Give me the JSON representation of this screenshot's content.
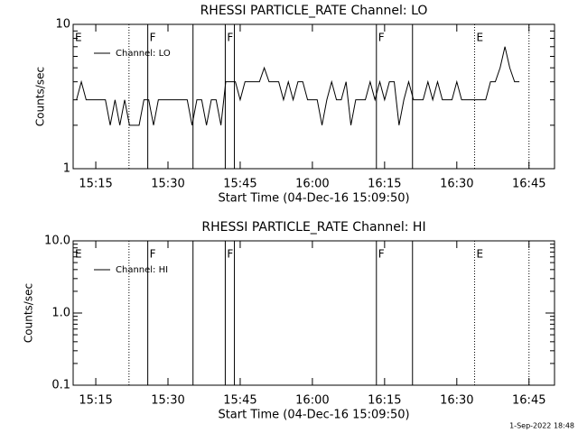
{
  "chart_data": [
    {
      "type": "line",
      "title": "RHESSI PARTICLE_RATE Channel: LO",
      "xlabel": "Start Time (04-Dec-16 15:09:50)",
      "ylabel": "Counts/sec",
      "log_scale": true,
      "legend": "upper left",
      "xlim": [
        10.3,
        110.3
      ],
      "xticks": [
        {
          "value": 15,
          "label": "15:15"
        },
        {
          "value": 30,
          "label": "15:30"
        },
        {
          "value": 45,
          "label": "15:45"
        },
        {
          "value": 60,
          "label": "16:00"
        },
        {
          "value": 75,
          "label": "16:15"
        },
        {
          "value": 90,
          "label": "16:30"
        },
        {
          "value": 105,
          "label": "16:45"
        }
      ],
      "ylim": [
        1,
        10
      ],
      "yticks": [
        1,
        10
      ],
      "series": [
        {
          "name": "Channel: LO",
          "color": "#000000",
          "x": [
            11,
            12,
            13,
            14,
            15,
            16,
            17,
            18,
            19,
            20,
            21,
            22,
            23,
            24,
            25,
            26,
            27,
            28,
            29,
            30,
            31,
            32,
            33,
            34,
            35,
            36,
            37,
            38,
            39,
            40,
            41,
            42,
            43,
            44,
            45,
            46,
            47,
            48,
            49,
            50,
            51,
            52,
            53,
            54,
            55,
            56,
            57,
            58,
            59,
            60,
            61,
            62,
            63,
            64,
            65,
            66,
            67,
            68,
            69,
            70,
            71,
            72,
            73,
            74,
            75,
            76,
            77,
            78,
            79,
            80,
            81,
            82,
            83,
            84,
            85,
            86,
            87,
            88,
            89,
            90,
            91,
            92,
            93,
            94,
            95,
            96,
            97,
            98,
            99,
            100,
            101,
            102,
            103
          ],
          "values": [
            3,
            4,
            3,
            3,
            3,
            3,
            3,
            2,
            3,
            2,
            3,
            2,
            2,
            2,
            3,
            3,
            2,
            3,
            3,
            3,
            3,
            3,
            3,
            3,
            2,
            3,
            3,
            2,
            3,
            3,
            2,
            4,
            4,
            4,
            3,
            4,
            4,
            4,
            4,
            5,
            4,
            4,
            4,
            3,
            4,
            3,
            4,
            4,
            3,
            3,
            3,
            2,
            3,
            4,
            3,
            3,
            4,
            2,
            3,
            3,
            3,
            4,
            3,
            4,
            3,
            4,
            4,
            2,
            3,
            4,
            3,
            3,
            3,
            4,
            3,
            4,
            3,
            3,
            3,
            4,
            3,
            3,
            3,
            3,
            3,
            3,
            4,
            4,
            5,
            7,
            5,
            4,
            4
          ]
        }
      ],
      "flag_lines": [
        {
          "x": 21.9,
          "style": "dotted"
        },
        {
          "x": 25.8,
          "style": "solid"
        },
        {
          "x": 35.2,
          "style": "solid"
        },
        {
          "x": 41.9,
          "style": "solid"
        },
        {
          "x": 43.8,
          "style": "solid"
        },
        {
          "x": 73.3,
          "style": "solid"
        },
        {
          "x": 80.8,
          "style": "solid"
        },
        {
          "x": 93.7,
          "style": "dotted"
        },
        {
          "x": 105,
          "style": "dotted"
        }
      ],
      "flag_labels": [
        {
          "text": "E",
          "x": 10.3
        },
        {
          "text": "F",
          "x": 25.8
        },
        {
          "text": "F",
          "x": 41.9
        },
        {
          "text": "F",
          "x": 73.3
        },
        {
          "text": "E",
          "x": 93.7
        }
      ]
    },
    {
      "type": "line",
      "title": "RHESSI PARTICLE_RATE Channel: HI",
      "xlabel": "Start Time (04-Dec-16 15:09:50)",
      "ylabel": "Counts/sec",
      "log_scale": true,
      "legend": "upper left",
      "xlim": [
        10.3,
        110.3
      ],
      "xticks": [
        {
          "value": 15,
          "label": "15:15"
        },
        {
          "value": 30,
          "label": "15:30"
        },
        {
          "value": 45,
          "label": "15:45"
        },
        {
          "value": 60,
          "label": "16:00"
        },
        {
          "value": 75,
          "label": "16:15"
        },
        {
          "value": 90,
          "label": "16:30"
        },
        {
          "value": 105,
          "label": "16:45"
        }
      ],
      "ylim": [
        0.1,
        10
      ],
      "yticks": [
        0.1,
        {
          "value": 1,
          "label": "1.0"
        },
        {
          "value": 10,
          "label": "10.0"
        }
      ],
      "series": [
        {
          "name": "Channel: HI",
          "color": "#000000",
          "x": [],
          "values": []
        }
      ],
      "flag_lines": [
        {
          "x": 21.9,
          "style": "dotted"
        },
        {
          "x": 25.8,
          "style": "solid"
        },
        {
          "x": 35.2,
          "style": "solid"
        },
        {
          "x": 41.9,
          "style": "solid"
        },
        {
          "x": 43.8,
          "style": "solid"
        },
        {
          "x": 73.3,
          "style": "solid"
        },
        {
          "x": 80.8,
          "style": "solid"
        },
        {
          "x": 93.7,
          "style": "dotted"
        },
        {
          "x": 105,
          "style": "dotted"
        }
      ],
      "flag_labels": [
        {
          "text": "E",
          "x": 10.3
        },
        {
          "text": "F",
          "x": 25.8
        },
        {
          "text": "F",
          "x": 41.9
        },
        {
          "text": "F",
          "x": 73.3
        },
        {
          "text": "E",
          "x": 93.7
        }
      ]
    }
  ],
  "footer": "1-Sep-2022 18:48"
}
